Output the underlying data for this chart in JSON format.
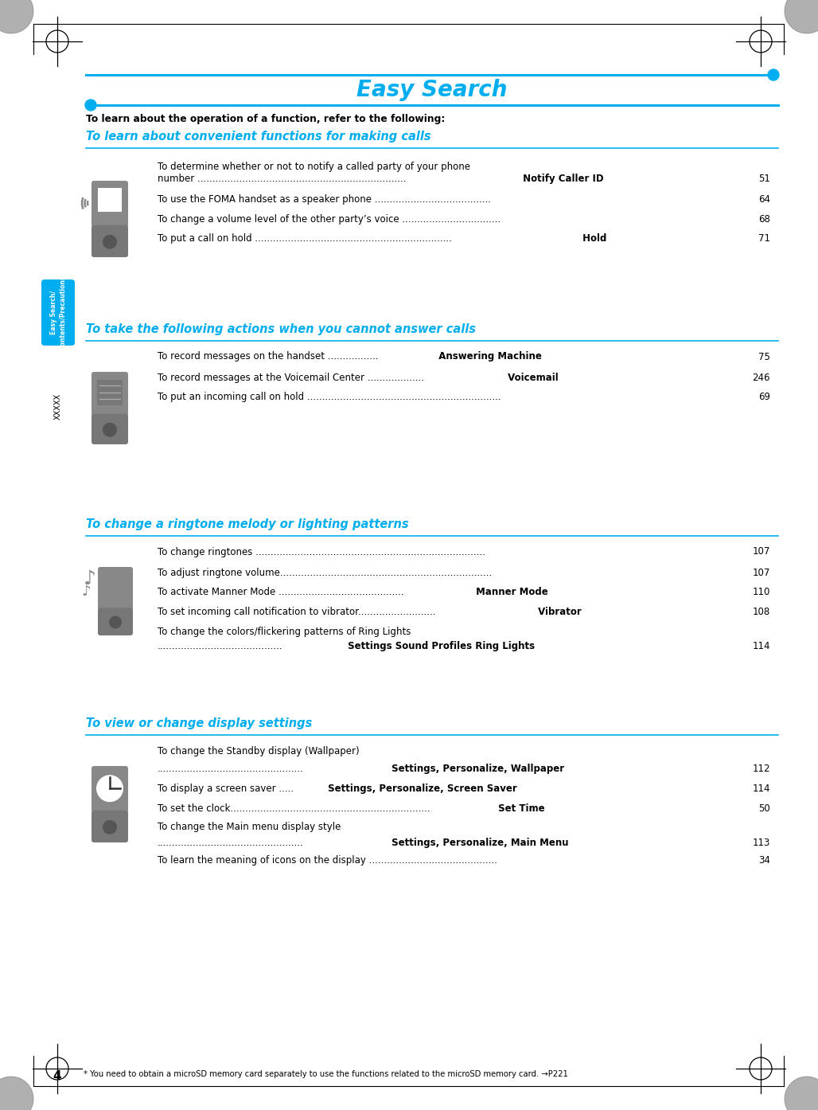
{
  "bg_color": "#ffffff",
  "page_num": "4",
  "footer_note": "* You need to obtain a microSD memory card separately to use the functions related to the microSD memory card. →P221",
  "title": "Easy Search",
  "title_color": "#00aeef",
  "title_fontsize": 20,
  "sidebar_text": "Easy Search/\nContents/Precautions",
  "sidebar_bg": "#00aeef",
  "xxxxx_text": "XXXXX",
  "intro_text": "To learn about the operation of a function, refer to the following:",
  "line_color": "#00aeef",
  "dot_color": "#00aeef",
  "text_color": "#000000",
  "section1_heading": "To learn about convenient functions for making calls",
  "section2_heading": "To take the following actions when you cannot answer calls",
  "section3_heading": "To change a ringtone melody or lighting patterns",
  "section4_heading": "To view or change display settings",
  "heading_color": "#00aeef",
  "s1_entries": [
    [
      "To determine whether or not to notify a called party of your phone",
      "",
      "",
      ""
    ],
    [
      "number ......................................................................",
      " Notify Caller ID",
      "  51",
      "bold"
    ],
    [
      "To use the FOMA handset as a speaker phone .......................................",
      "",
      "64",
      ""
    ],
    [
      "To change a volume level of the other party’s voice .................................",
      "",
      "68",
      ""
    ],
    [
      "To put a call on hold ..................................................................",
      " Hold",
      "   71",
      "bold"
    ]
  ],
  "s2_entries": [
    [
      "To record messages on the handset .................",
      "  Answering Machine",
      "   75",
      "bold"
    ],
    [
      "To record messages at the Voicemail Center ...................",
      " Voicemail",
      "   246",
      "bold"
    ],
    [
      "To put an incoming call on hold .................................................................",
      "",
      "69",
      ""
    ]
  ],
  "s3_entries": [
    [
      "To change ringtones .............................................................................",
      "",
      "107",
      ""
    ],
    [
      "To adjust ringtone volume.......................................................................",
      "",
      "107",
      ""
    ],
    [
      "To activate Manner Mode ..........................................",
      " Manner Mode",
      "   110",
      "bold"
    ],
    [
      "To set incoming call notification to vibrator..........................",
      " Vibrator",
      "   108",
      "bold"
    ],
    [
      "To change the colors/flickering patterns of Ring Lights",
      "",
      "",
      ""
    ],
    [
      "..........................................",
      " Settings Sound Profiles Ring Lights",
      "   114",
      "bold"
    ]
  ],
  "s4_entries": [
    [
      "To change the Standby display (Wallpaper)",
      "",
      "",
      ""
    ],
    [
      ".................................................",
      " Settings, Personalize, Wallpaper",
      "   112",
      "bold"
    ],
    [
      "To display a screen saver .....",
      " Settings, Personalize, Screen Saver",
      "   114",
      "bold"
    ],
    [
      "To set the clock...................................................................",
      " Set Time",
      "   50",
      "bold"
    ],
    [
      "To change the Main menu display style",
      "",
      "",
      ""
    ],
    [
      ".................................................",
      " Settings, Personalize, Main Menu",
      "   113",
      "bold"
    ],
    [
      "To learn the meaning of icons on the display ...........................................",
      "",
      "34",
      ""
    ]
  ]
}
